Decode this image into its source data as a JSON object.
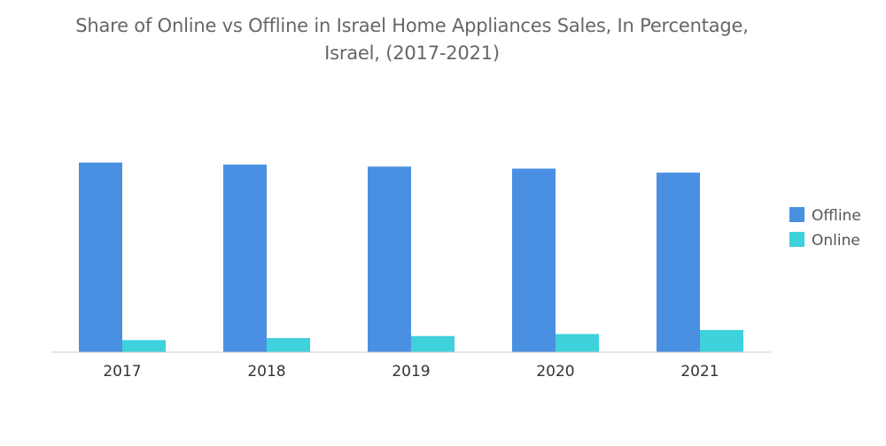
{
  "chart_data": {
    "type": "bar",
    "title_lines": [
      "Share of Online vs Offline in Israel Home Appliances Sales, In Percentage,",
      "Israel, (2017-2021)"
    ],
    "categories": [
      "2017",
      "2018",
      "2019",
      "2020",
      "2021"
    ],
    "series": [
      {
        "name": "Offline",
        "color": "#4a90e2",
        "values": [
          94.0,
          93.0,
          92.0,
          91.0,
          89.0
        ]
      },
      {
        "name": "Online",
        "color": "#3fd1dc",
        "values": [
          6.0,
          7.0,
          8.0,
          9.0,
          11.0
        ]
      }
    ],
    "ylim": [
      0,
      100
    ],
    "grid": false,
    "legend_position": "right"
  }
}
